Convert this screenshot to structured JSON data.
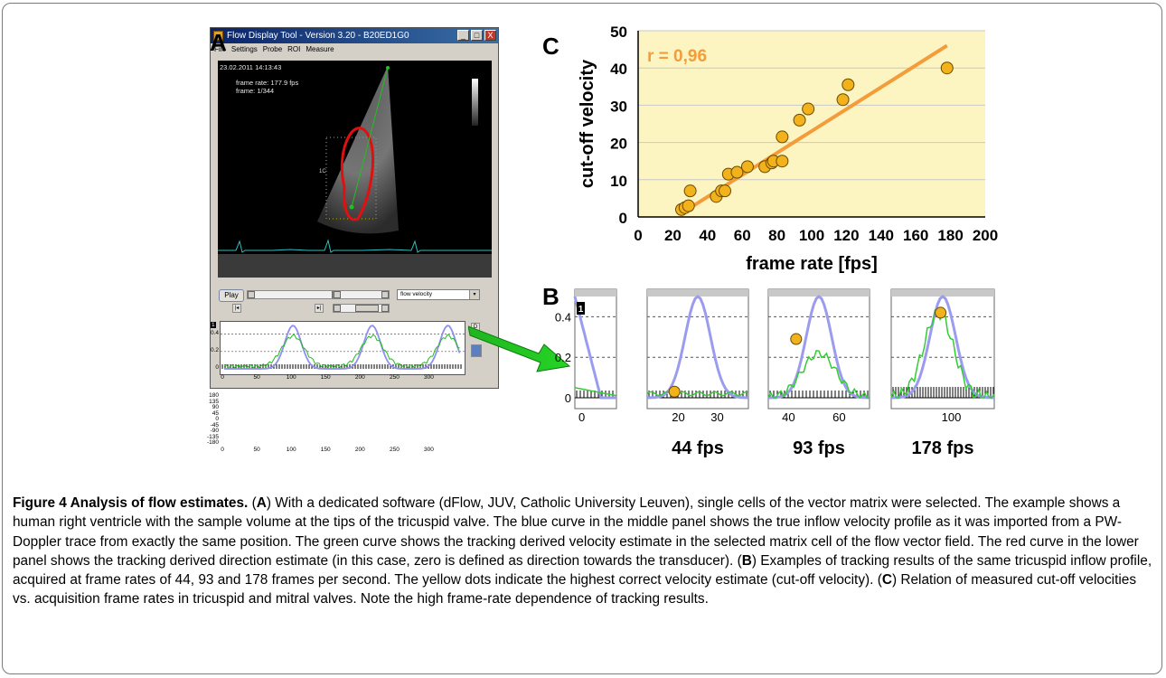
{
  "panels": {
    "a": "A",
    "b": "B",
    "c": "C"
  },
  "software": {
    "title": "Flow Display Tool - Version 3.20 - B20ED1G0",
    "menu": [
      "File",
      "Settings",
      "Probe",
      "ROI",
      "Measure"
    ],
    "window_buttons": [
      "_",
      "□",
      "X"
    ],
    "timestamp": "23.02.2011 14:13:43",
    "frame_rate": "frame rate: 177.9 fps",
    "frame": "frame: 1/344",
    "play_label": "Play",
    "dropdown_value": "flow velocity",
    "upper_plot": {
      "marker": "1",
      "yticks": [
        "0.4",
        "0.2",
        "0"
      ],
      "xticks": [
        "0",
        "50",
        "100",
        "150",
        "200",
        "250",
        "300"
      ]
    },
    "lower_plot": {
      "yticks": [
        "180",
        "135",
        "90",
        "45",
        "0",
        "-45",
        "-90",
        "-135",
        "-180"
      ],
      "xticks": [
        "0",
        "50",
        "100",
        "150",
        "200",
        "250",
        "300"
      ]
    },
    "side_buttons": [
      "D",
      ""
    ]
  },
  "chart_data": [
    {
      "type": "scatter",
      "panel": "C",
      "xlabel": "frame rate [fps]",
      "ylabel": "cut-off velocity",
      "annotation": "r = 0,96",
      "xlim": [
        0,
        200
      ],
      "ylim": [
        0,
        50
      ],
      "xticks": [
        0,
        20,
        40,
        60,
        80,
        100,
        120,
        140,
        160,
        180,
        200
      ],
      "yticks": [
        0,
        10,
        20,
        30,
        40,
        50
      ],
      "grid": "horizontal",
      "background": "#fdf5c1",
      "point_color": "#f2b21c",
      "line_color": "#f39c3c",
      "points": [
        [
          25,
          2
        ],
        [
          27,
          2.5
        ],
        [
          29,
          3
        ],
        [
          30,
          7
        ],
        [
          45,
          5.5
        ],
        [
          48,
          7
        ],
        [
          50,
          7
        ],
        [
          52,
          11.5
        ],
        [
          57,
          12
        ],
        [
          63,
          13.5
        ],
        [
          73,
          13.5
        ],
        [
          77,
          14.5
        ],
        [
          78,
          15
        ],
        [
          83,
          15
        ],
        [
          83,
          21.5
        ],
        [
          93,
          26
        ],
        [
          98,
          29
        ],
        [
          118,
          31.5
        ],
        [
          121,
          35.5
        ],
        [
          178,
          40
        ]
      ],
      "fit_line": [
        [
          25,
          1
        ],
        [
          178,
          46
        ]
      ]
    },
    {
      "type": "line",
      "panel": "B",
      "panels": [
        {
          "label": "",
          "marker": "1",
          "yticks": [
            "0.4",
            "0.2",
            "0"
          ],
          "xticks": [
            "0"
          ],
          "dot": null
        },
        {
          "label": "44 fps",
          "xticks": [
            "20",
            "30"
          ],
          "dot": {
            "x": 19,
            "y": 0.03
          }
        },
        {
          "label": "93 fps",
          "xticks": [
            "40",
            "60"
          ],
          "dot": {
            "x": 43,
            "y": 0.29
          }
        },
        {
          "label": "178 fps",
          "xticks": [
            "100"
          ],
          "dot": {
            "x": 95,
            "y": 0.42
          }
        }
      ]
    }
  ],
  "caption": {
    "title": "Figure 4 Analysis of flow estimates.",
    "text": " (A) With a dedicated software (dFlow, JUV, Catholic University Leuven), single cells of the vector matrix were selected. The example shows a human right ventricle with the sample volume at the tips of the tricuspid valve. The blue curve in the middle panel shows the true inflow velocity profile as it was imported from a PW-Doppler trace from exactly the same position. The green curve shows the tracking derived velocity estimate in the selected matrix cell of the flow vector field. The red curve in the lower panel shows the tracking derived direction estimate (in this case, zero is defined as direction towards the transducer). (B) Examples of tracking results of the same tricuspid inflow profile, acquired at frame rates of 44, 93 and 178 frames per second. The yellow dots indicate the highest correct velocity estimate (cut-off velocity). (C) Relation of measured cut-off velocities vs. acquisition frame rates in tricuspid and mitral valves. Note the high frame-rate dependence of tracking results."
  }
}
